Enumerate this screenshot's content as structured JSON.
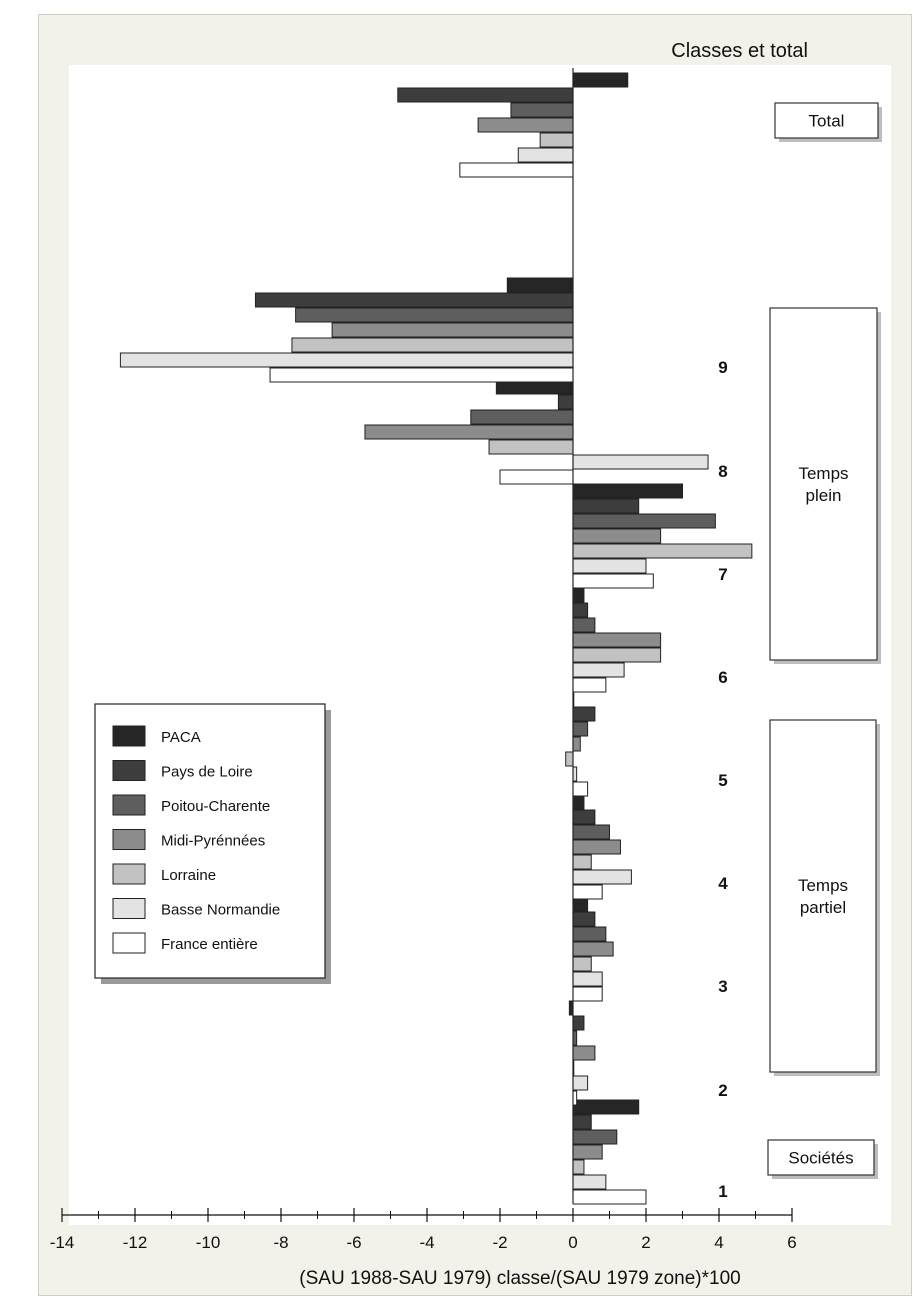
{
  "chart_data": {
    "type": "bar",
    "orientation": "horizontal",
    "title": "Classes et total",
    "xlabel": "(SAU 1988-SAU 1979) classe/(SAU 1979 zone)*100",
    "ylabel": "",
    "xlim": [
      -14,
      6
    ],
    "x_ticks": [
      "-14",
      "-12",
      "-10",
      "-8",
      "-6",
      "-4",
      "-2",
      "0",
      "2",
      "4",
      "6"
    ],
    "grid": false,
    "legend_position": "left",
    "categories": [
      "Total",
      "9",
      "8",
      "7",
      "6",
      "5",
      "4",
      "3",
      "2",
      "1"
    ],
    "category_labels": [
      "",
      "9",
      "8",
      "7",
      "6",
      "5",
      "4",
      "3",
      "2",
      "1"
    ],
    "series": [
      {
        "name": "PACA",
        "color": "#262626",
        "values": [
          1.5,
          -1.8,
          -2.1,
          3.0,
          0.3,
          0.0,
          0.3,
          0.4,
          -0.1,
          1.8
        ]
      },
      {
        "name": "Pays de Loire",
        "color": "#3d3d3d",
        "values": [
          -4.8,
          -8.7,
          -0.4,
          1.8,
          0.4,
          0.6,
          0.6,
          0.6,
          0.3,
          0.5
        ]
      },
      {
        "name": "Poitou-Charente",
        "color": "#5e5e5e",
        "values": [
          -1.7,
          -7.6,
          -2.8,
          3.9,
          0.6,
          0.4,
          1.0,
          0.9,
          0.1,
          1.2
        ]
      },
      {
        "name": "Midi-Pyrénnées",
        "color": "#8c8c8c",
        "values": [
          -2.6,
          -6.6,
          -5.7,
          2.4,
          2.4,
          0.2,
          1.3,
          1.1,
          0.6,
          0.8
        ]
      },
      {
        "name": "Lorraine",
        "color": "#c2c2c2",
        "values": [
          -0.9,
          -7.7,
          -2.3,
          4.9,
          2.4,
          -0.2,
          0.5,
          0.5,
          0.0,
          0.3
        ]
      },
      {
        "name": "Basse Normandie",
        "color": "#e3e3e3",
        "values": [
          -1.5,
          -12.4,
          3.7,
          2.0,
          1.4,
          0.1,
          1.6,
          0.8,
          0.4,
          0.9
        ]
      },
      {
        "name": "France entière",
        "color": "#ffffff",
        "values": [
          -3.1,
          -8.3,
          -2.0,
          2.2,
          0.9,
          0.4,
          0.8,
          0.8,
          0.1,
          2.0
        ]
      }
    ],
    "group_labels": [
      {
        "text": "Total"
      },
      {
        "text": "Temps\nplein"
      },
      {
        "text": "Temps\npartiel"
      },
      {
        "text": "Sociétés"
      }
    ]
  }
}
